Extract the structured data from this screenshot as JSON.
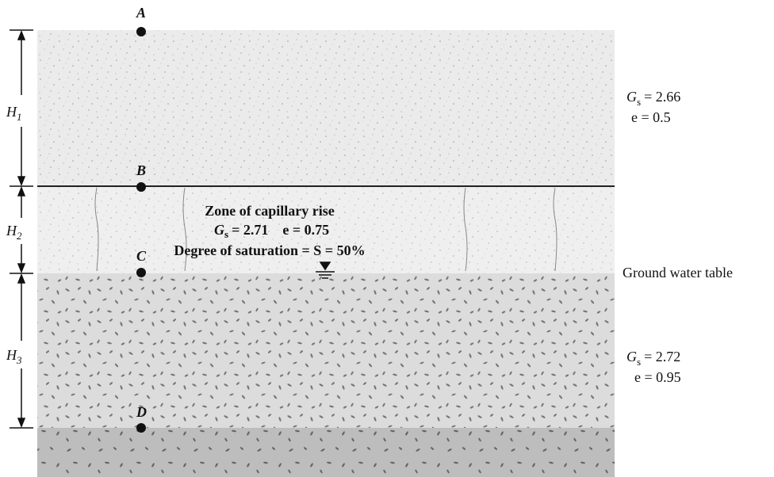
{
  "points": [
    "A",
    "B",
    "C",
    "D"
  ],
  "thicknesses": [
    {
      "symbol": "H",
      "subscript": "1"
    },
    {
      "symbol": "H",
      "subscript": "2"
    },
    {
      "symbol": "H",
      "subscript": "3"
    }
  ],
  "layers": [
    {
      "gs": {
        "symbol": "G",
        "subscript": "s",
        "value": "= 2.66"
      },
      "e": "e = 0.5"
    },
    {
      "gs": {
        "symbol": "G",
        "subscript": "s",
        "value": "= 2.72"
      },
      "e": "e = 0.95"
    }
  ],
  "capillary_zone": {
    "title": "Zone of capillary rise",
    "gs": {
      "symbol": "G",
      "subscript": "s",
      "value": "= 2.71"
    },
    "e": "e = 0.75",
    "saturation": "Degree of saturation = S = 50%"
  },
  "water_table": "Ground water table"
}
